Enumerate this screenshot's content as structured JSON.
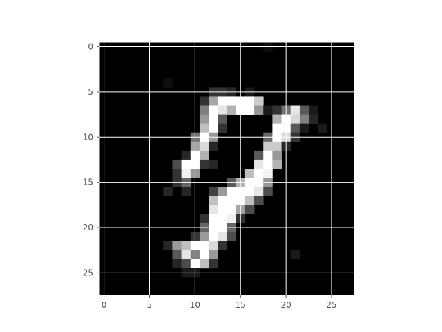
{
  "chart_data": {
    "type": "heatmap",
    "title": "",
    "xlabel": "",
    "ylabel": "",
    "colormap": "gray",
    "rows": 28,
    "cols": 28,
    "xlim": [
      -0.5,
      27.5
    ],
    "ylim": [
      27.5,
      -0.5
    ],
    "grid": true,
    "grid_color": "#ffffff",
    "frame_color": "#ffffff",
    "tick_color": "#555555",
    "x_ticks": [
      0,
      5,
      10,
      15,
      20,
      25
    ],
    "y_ticks": [
      0,
      5,
      10,
      15,
      20,
      25
    ],
    "x_tick_labels": [
      "0",
      "5",
      "10",
      "15",
      "20",
      "25"
    ],
    "y_tick_labels": [
      "0",
      "5",
      "10",
      "15",
      "20",
      "25"
    ],
    "nonzero_pixels": [
      [
        0,
        18,
        0.05
      ],
      [
        4,
        7,
        0.05
      ],
      [
        5,
        12,
        0.2
      ],
      [
        5,
        13,
        0.2
      ],
      [
        5,
        14,
        0.15
      ],
      [
        5,
        16,
        0.1
      ],
      [
        6,
        11,
        0.2
      ],
      [
        6,
        12,
        0.65
      ],
      [
        6,
        13,
        1.0
      ],
      [
        6,
        14,
        1.0
      ],
      [
        6,
        15,
        1.0
      ],
      [
        6,
        16,
        1.0
      ],
      [
        6,
        17,
        0.8
      ],
      [
        7,
        11,
        0.5
      ],
      [
        7,
        12,
        1.0
      ],
      [
        7,
        13,
        0.9
      ],
      [
        7,
        14,
        0.7
      ],
      [
        7,
        15,
        1.0
      ],
      [
        7,
        16,
        1.0
      ],
      [
        7,
        17,
        0.6
      ],
      [
        7,
        18,
        0.1
      ],
      [
        7,
        19,
        0.2
      ],
      [
        7,
        20,
        0.45
      ],
      [
        7,
        21,
        0.9
      ],
      [
        7,
        22,
        0.35
      ],
      [
        7,
        23,
        0.1
      ],
      [
        8,
        11,
        0.6
      ],
      [
        8,
        12,
        1.0
      ],
      [
        8,
        13,
        0.35
      ],
      [
        8,
        19,
        0.7
      ],
      [
        8,
        20,
        1.0
      ],
      [
        8,
        21,
        0.85
      ],
      [
        8,
        22,
        0.5
      ],
      [
        8,
        23,
        0.15
      ],
      [
        9,
        11,
        0.75
      ],
      [
        9,
        12,
        1.0
      ],
      [
        9,
        13,
        0.2
      ],
      [
        9,
        19,
        1.0
      ],
      [
        9,
        20,
        1.0
      ],
      [
        9,
        21,
        0.35
      ],
      [
        9,
        22,
        0.1
      ],
      [
        9,
        24,
        0.1
      ],
      [
        10,
        10,
        0.45
      ],
      [
        10,
        11,
        1.0
      ],
      [
        10,
        12,
        0.6
      ],
      [
        10,
        18,
        0.4
      ],
      [
        10,
        19,
        1.0
      ],
      [
        10,
        20,
        0.85
      ],
      [
        10,
        21,
        0.2
      ],
      [
        11,
        10,
        0.65
      ],
      [
        11,
        11,
        0.85
      ],
      [
        11,
        12,
        0.15
      ],
      [
        11,
        18,
        0.8
      ],
      [
        11,
        19,
        0.8
      ],
      [
        11,
        20,
        0.15
      ],
      [
        12,
        9,
        0.15
      ],
      [
        12,
        10,
        1.0
      ],
      [
        12,
        11,
        0.7
      ],
      [
        12,
        17,
        0.35
      ],
      [
        12,
        18,
        1.0
      ],
      [
        12,
        19,
        0.6
      ],
      [
        13,
        8,
        0.3
      ],
      [
        13,
        9,
        1.0
      ],
      [
        13,
        10,
        1.0
      ],
      [
        13,
        11,
        0.2
      ],
      [
        13,
        12,
        0.15
      ],
      [
        13,
        17,
        0.9
      ],
      [
        13,
        18,
        1.0
      ],
      [
        13,
        19,
        0.7
      ],
      [
        14,
        8,
        0.2
      ],
      [
        14,
        9,
        0.95
      ],
      [
        14,
        10,
        0.6
      ],
      [
        14,
        16,
        0.75
      ],
      [
        14,
        17,
        1.0
      ],
      [
        14,
        18,
        0.95
      ],
      [
        15,
        8,
        0.2
      ],
      [
        15,
        9,
        0.4
      ],
      [
        15,
        14,
        0.35
      ],
      [
        15,
        15,
        0.7
      ],
      [
        15,
        16,
        1.0
      ],
      [
        15,
        17,
        1.0
      ],
      [
        15,
        18,
        0.6
      ],
      [
        16,
        7,
        0.15
      ],
      [
        16,
        9,
        0.15
      ],
      [
        16,
        12,
        0.25
      ],
      [
        16,
        13,
        0.6
      ],
      [
        16,
        14,
        1.0
      ],
      [
        16,
        15,
        1.0
      ],
      [
        16,
        16,
        1.0
      ],
      [
        16,
        17,
        0.9
      ],
      [
        16,
        18,
        0.3
      ],
      [
        17,
        12,
        0.75
      ],
      [
        17,
        13,
        1.0
      ],
      [
        17,
        14,
        1.0
      ],
      [
        17,
        15,
        1.0
      ],
      [
        17,
        16,
        0.75
      ],
      [
        17,
        17,
        0.3
      ],
      [
        18,
        12,
        0.9
      ],
      [
        18,
        13,
        1.0
      ],
      [
        18,
        14,
        1.0
      ],
      [
        18,
        15,
        0.65
      ],
      [
        18,
        16,
        0.3
      ],
      [
        19,
        11,
        0.2
      ],
      [
        19,
        12,
        1.0
      ],
      [
        19,
        13,
        1.0
      ],
      [
        19,
        14,
        0.95
      ],
      [
        19,
        15,
        0.2
      ],
      [
        20,
        11,
        0.4
      ],
      [
        20,
        12,
        1.0
      ],
      [
        20,
        13,
        1.0
      ],
      [
        20,
        14,
        0.4
      ],
      [
        21,
        10,
        0.2
      ],
      [
        21,
        11,
        0.6
      ],
      [
        21,
        12,
        1.0
      ],
      [
        21,
        13,
        0.9
      ],
      [
        21,
        14,
        0.3
      ],
      [
        22,
        7,
        0.15
      ],
      [
        22,
        8,
        0.6
      ],
      [
        22,
        9,
        0.75
      ],
      [
        22,
        10,
        1.0
      ],
      [
        22,
        11,
        1.0
      ],
      [
        22,
        12,
        0.85
      ],
      [
        22,
        13,
        0.2
      ],
      [
        23,
        8,
        0.35
      ],
      [
        23,
        9,
        0.9
      ],
      [
        23,
        10,
        0.5
      ],
      [
        23,
        11,
        1.0
      ],
      [
        23,
        12,
        0.6
      ],
      [
        23,
        21,
        0.1
      ],
      [
        24,
        8,
        0.15
      ],
      [
        24,
        9,
        0.3
      ],
      [
        24,
        10,
        1.0
      ],
      [
        24,
        11,
        0.75
      ],
      [
        24,
        12,
        0.2
      ],
      [
        25,
        9,
        0.1
      ],
      [
        25,
        10,
        0.1
      ]
    ]
  }
}
